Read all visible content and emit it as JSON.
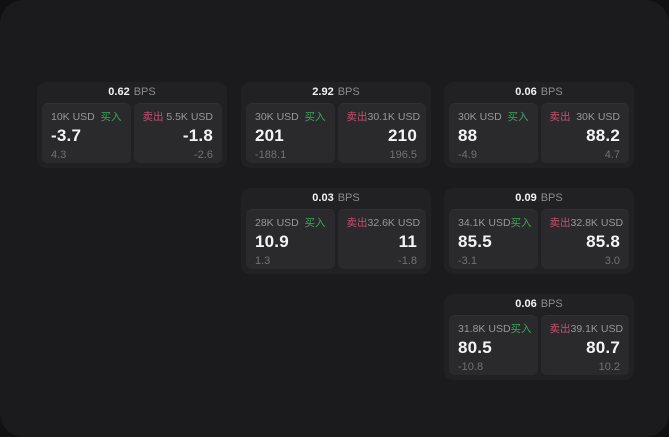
{
  "labels": {
    "bps_unit": "BPS",
    "buy": "买入",
    "sell": "卖出"
  },
  "colors": {
    "buy_green": "#3aa55e",
    "sell_red": "#c64f6d",
    "frame_bg": "#1b1b1d",
    "card_bg": "#212124",
    "panel_bg": "#2a2a2d"
  },
  "cards": [
    {
      "bps": "0.62",
      "buy": {
        "amount": "10K USD",
        "price": "-3.7",
        "delta": "4.3"
      },
      "sell": {
        "amount": "5.5K USD",
        "price": "-1.8",
        "delta": "-2.6"
      }
    },
    {
      "bps": "2.92",
      "buy": {
        "amount": "30K USD",
        "price": "201",
        "delta": "-188.1"
      },
      "sell": {
        "amount": "30.1K USD",
        "price": "210",
        "delta": "196.5"
      }
    },
    {
      "bps": "0.06",
      "buy": {
        "amount": "30K USD",
        "price": "88",
        "delta": "-4.9"
      },
      "sell": {
        "amount": "30K USD",
        "price": "88.2",
        "delta": "4.7"
      }
    },
    {
      "bps": "0.03",
      "buy": {
        "amount": "28K USD",
        "price": "10.9",
        "delta": "1.3"
      },
      "sell": {
        "amount": "32.6K USD",
        "price": "11",
        "delta": "-1.8"
      }
    },
    {
      "bps": "0.09",
      "buy": {
        "amount": "34.1K USD",
        "price": "85.5",
        "delta": "-3.1"
      },
      "sell": {
        "amount": "32.8K USD",
        "price": "85.8",
        "delta": "3.0"
      }
    },
    {
      "bps": "0.06",
      "buy": {
        "amount": "31.8K USD",
        "price": "80.5",
        "delta": "-10.8"
      },
      "sell": {
        "amount": "39.1K USD",
        "price": "80.7",
        "delta": "10.2"
      }
    }
  ]
}
